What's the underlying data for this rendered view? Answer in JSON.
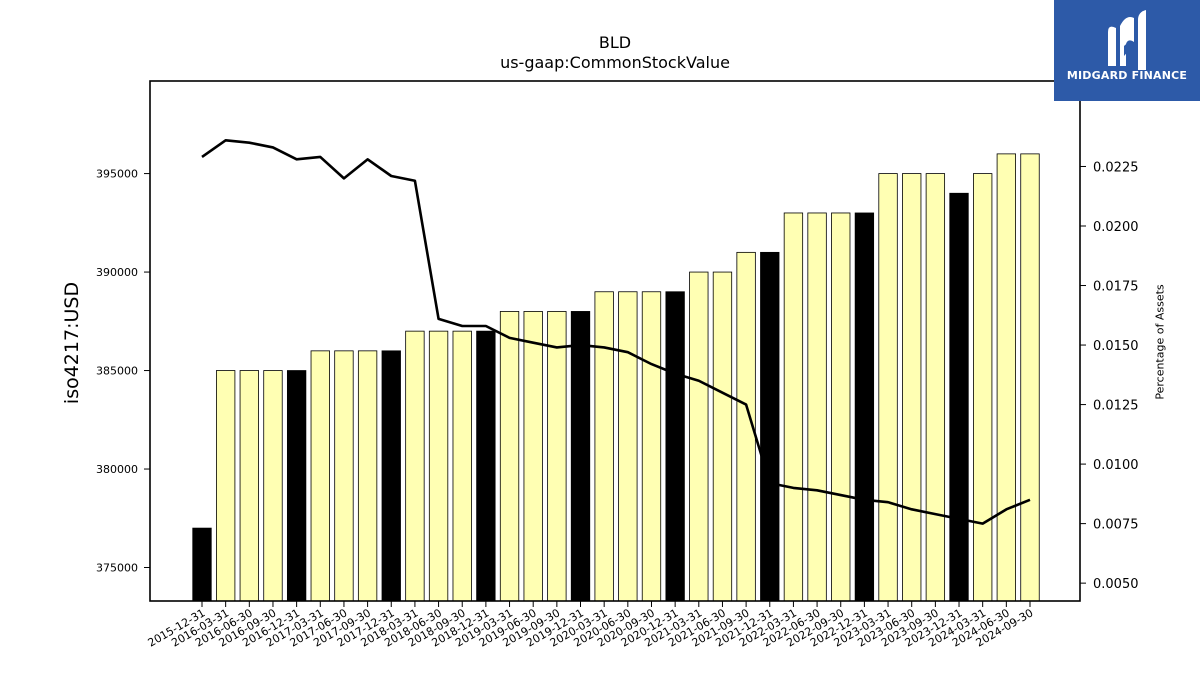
{
  "chart_data": {
    "type": "bar",
    "title": "BLD",
    "subtitle": "us-gaap:CommonStockValue",
    "ylabel": "iso4217:USD",
    "y2label": "Percentage of Assets",
    "ylim": [
      373300,
      399700
    ],
    "y2lim": [
      0.00425,
      0.02609
    ],
    "yticks": [
      375000,
      380000,
      385000,
      390000,
      395000
    ],
    "y2ticks": [
      "0.0050",
      "0.0075",
      "0.0100",
      "0.0125",
      "0.0150",
      "0.0175",
      "0.0200",
      "0.0225"
    ],
    "categories": [
      "2015-12-31",
      "2016-03-31",
      "2016-06-30",
      "2016-09-30",
      "2016-12-31",
      "2017-03-31",
      "2017-06-30",
      "2017-09-30",
      "2017-12-31",
      "2018-03-31",
      "2018-06-30",
      "2018-09-30",
      "2018-12-31",
      "2019-03-31",
      "2019-06-30",
      "2019-09-30",
      "2019-12-31",
      "2020-03-31",
      "2020-06-30",
      "2020-09-30",
      "2020-12-31",
      "2021-03-31",
      "2021-06-30",
      "2021-09-30",
      "2021-12-31",
      "2022-03-31",
      "2022-06-30",
      "2022-09-30",
      "2022-12-31",
      "2023-03-31",
      "2023-06-30",
      "2023-09-30",
      "2023-12-31",
      "2024-03-31",
      "2024-06-30",
      "2024-09-30"
    ],
    "series": [
      {
        "kind": "bar",
        "values": [
          377000,
          385000,
          385000,
          385000,
          385000,
          386000,
          386000,
          386000,
          386000,
          387000,
          387000,
          387000,
          387000,
          388000,
          388000,
          388000,
          388000,
          389000,
          389000,
          389000,
          389000,
          390000,
          390000,
          391000,
          391000,
          393000,
          393000,
          393000,
          393000,
          395000,
          395000,
          395000,
          394000,
          395000,
          396000,
          396000
        ],
        "highlight": [
          true,
          false,
          false,
          false,
          true,
          false,
          false,
          false,
          true,
          false,
          false,
          false,
          true,
          false,
          false,
          false,
          true,
          false,
          false,
          false,
          true,
          false,
          false,
          false,
          true,
          false,
          false,
          false,
          true,
          false,
          false,
          false,
          true,
          false,
          false,
          false
        ]
      },
      {
        "kind": "line",
        "axis": "right",
        "values": [
          0.0229,
          0.0236,
          0.0235,
          0.0233,
          0.0228,
          0.0229,
          0.022,
          0.0228,
          0.0221,
          0.0219,
          0.0161,
          0.0158,
          0.0158,
          0.0153,
          0.0151,
          0.0149,
          0.015,
          0.0149,
          0.0147,
          0.0142,
          0.0138,
          0.0135,
          0.013,
          0.0125,
          0.0092,
          0.009,
          0.0089,
          0.0087,
          0.0085,
          0.0084,
          0.0081,
          0.0079,
          0.0077,
          0.0075,
          0.0081,
          0.0085
        ]
      }
    ],
    "colors": {
      "bar": "#ffffb3",
      "highlight": "#000000",
      "line": "#000000"
    },
    "grid": false
  },
  "logo": {
    "text": "MIDGARD FINANCE"
  }
}
